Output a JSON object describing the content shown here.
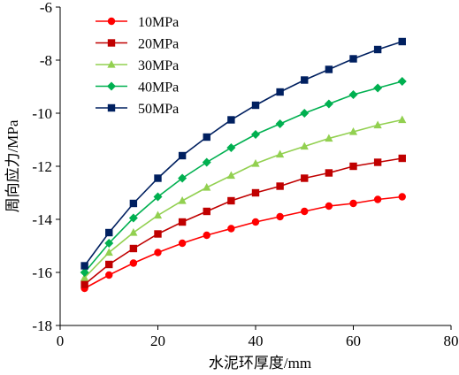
{
  "chart_data": {
    "type": "line",
    "xlabel": "水泥环厚度/mm",
    "ylabel": "周向应力/MPa",
    "xlim": [
      0,
      80
    ],
    "ylim": [
      -18,
      -6
    ],
    "xticks": [
      0,
      20,
      40,
      60,
      80
    ],
    "yticks": [
      -18,
      -16,
      -14,
      -12,
      -10,
      -8,
      -6
    ],
    "grid": false,
    "legend_position": "top-left",
    "x": [
      5,
      10,
      15,
      20,
      25,
      30,
      35,
      40,
      45,
      50,
      55,
      60,
      65,
      70
    ],
    "series": [
      {
        "name": "10MPa",
        "color": "#ff0000",
        "marker": "circle",
        "values": [
          -16.6,
          -16.1,
          -15.65,
          -15.25,
          -14.9,
          -14.6,
          -14.35,
          -14.1,
          -13.9,
          -13.7,
          -13.5,
          -13.4,
          -13.25,
          -13.15
        ]
      },
      {
        "name": "20MPa",
        "color": "#c00000",
        "marker": "square",
        "values": [
          -16.45,
          -15.7,
          -15.1,
          -14.55,
          -14.1,
          -13.7,
          -13.3,
          -13.0,
          -12.75,
          -12.45,
          -12.25,
          -12.0,
          -11.85,
          -11.7
        ]
      },
      {
        "name": "30MPa",
        "color": "#92d050",
        "marker": "triangle",
        "values": [
          -16.2,
          -15.25,
          -14.5,
          -13.85,
          -13.3,
          -12.8,
          -12.35,
          -11.9,
          -11.55,
          -11.25,
          -10.95,
          -10.7,
          -10.45,
          -10.25
        ]
      },
      {
        "name": "40MPa",
        "color": "#00b050",
        "marker": "diamond",
        "values": [
          -16.0,
          -14.9,
          -13.95,
          -13.15,
          -12.45,
          -11.85,
          -11.3,
          -10.8,
          -10.4,
          -10.0,
          -9.65,
          -9.3,
          -9.05,
          -8.8
        ]
      },
      {
        "name": "50MPa",
        "color": "#002060",
        "marker": "square",
        "values": [
          -15.75,
          -14.5,
          -13.4,
          -12.45,
          -11.6,
          -10.9,
          -10.25,
          -9.7,
          -9.2,
          -8.75,
          -8.35,
          -7.95,
          -7.6,
          -7.3
        ]
      }
    ]
  }
}
